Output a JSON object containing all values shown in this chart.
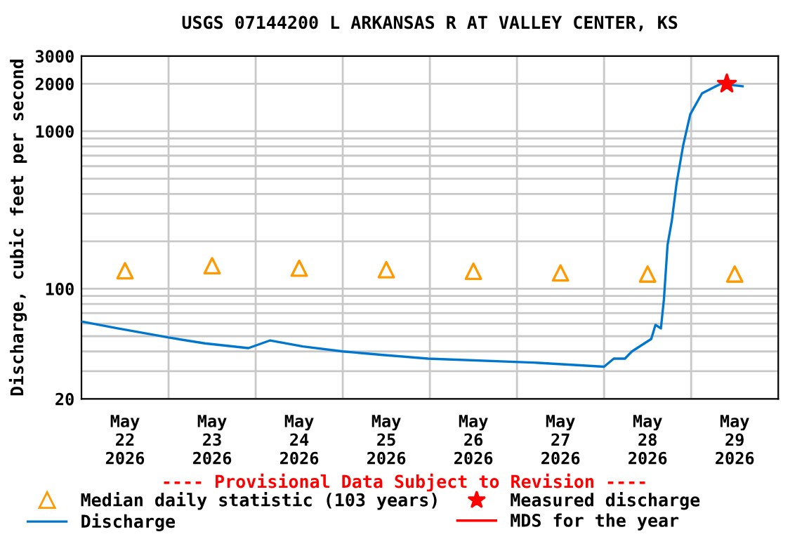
{
  "chart_data": {
    "type": "line",
    "title": "USGS 07144200 L ARKANSAS R AT VALLEY CENTER, KS",
    "ylabel": "Discharge, cubic feet per second",
    "log": "y",
    "grid": true,
    "legend": "bottom",
    "annotations": [
      "---- Provisional Data Subject to Revision ----"
    ],
    "xlim": [
      "2026-05-22T00:00",
      "2026-05-30T00:00"
    ],
    "xticks": [
      {
        "value": "2026-05-22T12:00",
        "label": "May\n22\n2026"
      },
      {
        "value": "2026-05-23T12:00",
        "label": "May\n23\n2026"
      },
      {
        "value": "2026-05-24T12:00",
        "label": "May\n24\n2026"
      },
      {
        "value": "2026-05-25T12:00",
        "label": "May\n25\n2026"
      },
      {
        "value": "2026-05-26T12:00",
        "label": "May\n26\n2026"
      },
      {
        "value": "2026-05-27T12:00",
        "label": "May\n27\n2026"
      },
      {
        "value": "2026-05-28T12:00",
        "label": "May\n28\n2026"
      },
      {
        "value": "2026-05-29T12:00",
        "label": "May\n29\n2026"
      },
      {
        "value": "2026-05-23T00:00",
        "label": null
      },
      {
        "value": "2026-05-24T00:00",
        "label": null
      },
      {
        "value": "2026-05-25T00:00",
        "label": null
      },
      {
        "value": "2026-05-26T00:00",
        "label": null
      },
      {
        "value": "2026-05-27T00:00",
        "label": null
      },
      {
        "value": "2026-05-28T00:00",
        "label": null
      },
      {
        "value": "2026-05-29T00:00",
        "label": null
      }
    ],
    "ylim": [
      20,
      3000
    ],
    "yticks": [
      20,
      100,
      1000,
      2000,
      3000,
      {
        "value": 30,
        "label": null
      },
      {
        "value": 40,
        "label": null
      },
      {
        "value": 50,
        "label": null
      },
      {
        "value": 60,
        "label": null
      },
      {
        "value": 70,
        "label": null
      },
      {
        "value": 80,
        "label": null
      },
      {
        "value": 90,
        "label": null
      },
      {
        "value": 200,
        "label": null
      },
      {
        "value": 300,
        "label": null
      },
      {
        "value": 400,
        "label": null
      },
      {
        "value": 500,
        "label": null
      },
      {
        "value": 600,
        "label": null
      },
      {
        "value": 700,
        "label": null
      },
      {
        "value": 800,
        "label": null
      },
      {
        "value": 900,
        "label": null
      }
    ],
    "series": [
      {
        "name": "Median daily statistic (103 years)",
        "type": "scatter",
        "marker": "triangle",
        "color": "#ff9900",
        "x": [
          "2026-05-22T12:00",
          "2026-05-23T12:00",
          "2026-05-24T12:00",
          "2026-05-25T12:00",
          "2026-05-26T12:00",
          "2026-05-27T12:00",
          "2026-05-28T12:00",
          "2026-05-29T12:00"
        ],
        "values": [
          130,
          140,
          135,
          132,
          129,
          126,
          124,
          124
        ]
      },
      {
        "name": "Discharge",
        "marker": "none",
        "color": "#0077cc",
        "x": [
          "2026-05-22T00:00",
          "2026-05-22T10:00",
          "2026-05-22T20:00",
          "2026-05-23T00:00",
          "2026-05-23T10:00",
          "2026-05-23T22:00",
          "2026-05-24T04:00",
          "2026-05-24T13:00",
          "2026-05-25T00:00",
          "2026-05-25T11:00",
          "2026-05-25T23:30",
          "2026-05-27T04:30",
          "2026-05-28T00:00",
          "2026-05-28T02:40",
          "2026-05-28T05:45",
          "2026-05-28T07:40",
          "2026-05-28T13:00",
          "2026-05-28T14:10",
          "2026-05-28T15:40",
          "2026-05-28T16:30",
          "2026-05-28T17:30",
          "2026-05-28T18:40",
          "2026-05-28T20:00",
          "2026-05-28T21:50",
          "2026-05-28T23:45",
          "2026-05-29T03:00",
          "2026-05-29T08:10",
          "2026-05-29T14:10"
        ],
        "values": [
          62,
          56,
          51,
          49,
          45,
          42,
          47,
          43,
          40,
          38,
          36,
          34,
          32,
          36,
          36,
          40,
          48,
          59,
          56,
          86,
          190,
          270,
          470,
          820,
          1280,
          1740,
          2000,
          1930
        ]
      },
      {
        "name": "Measured discharge",
        "type": "scatter",
        "marker": "star",
        "color": "#ff0000",
        "x": [
          "2026-05-29T09:50"
        ],
        "values": [
          2000
        ]
      },
      {
        "name": "MDS for the year",
        "marker": "none",
        "color": "#ff0000"
      }
    ]
  }
}
